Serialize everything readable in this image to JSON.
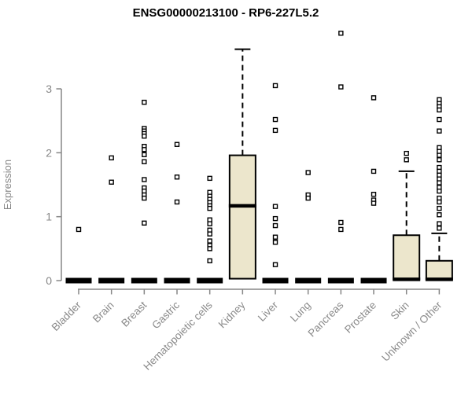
{
  "chart_data": {
    "type": "boxplot",
    "title": "ENSG00000213100 - RP6-227L5.2",
    "xlabel": "",
    "ylabel": "Expression",
    "yticks": [
      0,
      1,
      2,
      3
    ],
    "ylim": [
      0,
      3.9
    ],
    "grid": false,
    "legend": null,
    "categories": [
      "Bladder",
      "Brain",
      "Breast",
      "Gastric",
      "Hematopoietic cells",
      "Kidney",
      "Liver",
      "Lung",
      "Pancreas",
      "Prostate",
      "Skin",
      "Unknown / Other"
    ],
    "boxes": [
      {
        "category": "Bladder",
        "q1": 0,
        "median": 0,
        "q3": 0,
        "whisker_low": 0,
        "whisker_high": 0,
        "outliers": [
          0.8
        ]
      },
      {
        "category": "Brain",
        "q1": 0,
        "median": 0,
        "q3": 0,
        "whisker_low": 0,
        "whisker_high": 0,
        "outliers": [
          1.92,
          1.54
        ]
      },
      {
        "category": "Breast",
        "q1": 0,
        "median": 0,
        "q3": 0,
        "whisker_low": 0,
        "whisker_high": 0,
        "outliers": [
          2.79,
          2.38,
          2.34,
          2.3,
          2.26,
          2.1,
          2.05,
          1.97,
          1.86,
          1.58,
          1.45,
          1.4,
          1.34,
          1.29,
          0.9
        ]
      },
      {
        "category": "Gastric",
        "q1": 0,
        "median": 0,
        "q3": 0,
        "whisker_low": 0,
        "whisker_high": 0,
        "outliers": [
          2.13,
          1.62,
          1.23
        ]
      },
      {
        "category": "Hematopoietic cells",
        "q1": 0,
        "median": 0,
        "q3": 0,
        "whisker_low": 0,
        "whisker_high": 0,
        "outliers": [
          1.6,
          1.38,
          1.32,
          1.27,
          1.22,
          1.17,
          1.13,
          0.95,
          0.89,
          0.79,
          0.73,
          0.62,
          0.55,
          0.5,
          0.31
        ]
      },
      {
        "category": "Kidney",
        "q1": 0.03,
        "median": 1.17,
        "q3": 1.96,
        "whisker_low": 0.03,
        "whisker_high": 3.62,
        "outliers": []
      },
      {
        "category": "Liver",
        "q1": 0,
        "median": 0,
        "q3": 0,
        "whisker_low": 0,
        "whisker_high": 0,
        "outliers": [
          3.05,
          2.52,
          2.35,
          1.16,
          0.97,
          0.86,
          0.68,
          0.6,
          0.25
        ]
      },
      {
        "category": "Lung",
        "q1": 0,
        "median": 0,
        "q3": 0,
        "whisker_low": 0,
        "whisker_high": 0,
        "outliers": [
          1.69,
          1.34,
          1.29
        ]
      },
      {
        "category": "Pancreas",
        "q1": 0,
        "median": 0,
        "q3": 0,
        "whisker_low": 0,
        "whisker_high": 0,
        "outliers": [
          3.87,
          3.03,
          0.91,
          0.8
        ]
      },
      {
        "category": "Prostate",
        "q1": 0,
        "median": 0,
        "q3": 0,
        "whisker_low": 0,
        "whisker_high": 0,
        "outliers": [
          2.86,
          1.71,
          1.35,
          1.26,
          1.21
        ]
      },
      {
        "category": "Skin",
        "q1": 0.02,
        "median": 0.02,
        "q3": 0.71,
        "whisker_low": 0.02,
        "whisker_high": 1.71,
        "outliers": [
          1.99,
          1.89
        ]
      },
      {
        "category": "Unknown / Other",
        "q1": 0.02,
        "median": 0.02,
        "q3": 0.31,
        "whisker_low": 0.02,
        "whisker_high": 0.74,
        "outliers": [
          2.83,
          2.77,
          2.72,
          2.67,
          2.52,
          2.34,
          2.08,
          2.02,
          1.96,
          1.89,
          1.77,
          1.71,
          1.65,
          1.59,
          1.53,
          1.46,
          1.4,
          1.29,
          1.23,
          1.13,
          1.03,
          0.89,
          0.82
        ]
      }
    ],
    "colors": {
      "box_fill": "#ece6cc",
      "ink": "#000000",
      "axis": "#878787",
      "background": "#ffffff"
    }
  }
}
